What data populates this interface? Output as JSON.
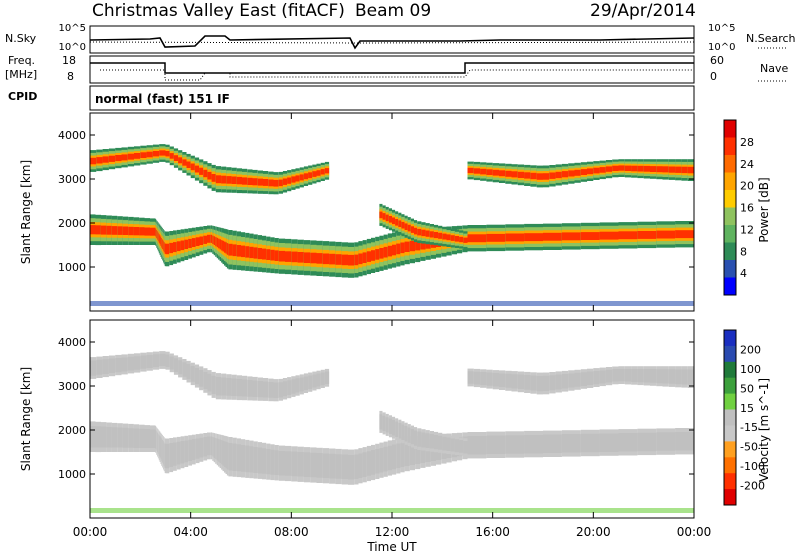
{
  "header": {
    "title": "Christmas Valley East (fitACF)",
    "beam": "Beam 09",
    "date": "29/Apr/2014"
  },
  "panels": {
    "nsky_label": "N.Sky",
    "nsearch_label": "N.Search",
    "freq_label_1": "Freq.",
    "freq_label_2": "[MHz]",
    "nave_label": "Nave",
    "cpid_label": "CPID",
    "cpid_text": "normal (fast) 151 IF",
    "noise_ticks_left": [
      "10^5",
      "10^0"
    ],
    "noise_ticks_right": [
      "10^5",
      "10^0"
    ],
    "freq_ticks": [
      "18",
      "8"
    ],
    "nave_ticks": [
      "60",
      "0"
    ]
  },
  "colors": {
    "power": [
      "#0000ff",
      "#2a50b0",
      "#2e8b57",
      "#5fb35f",
      "#8fc35f",
      "#ffcc00",
      "#ffa500",
      "#ff6a00",
      "#ff3000",
      "#e00000"
    ],
    "velocity": [
      "#1a2ec0",
      "#2a4ab0",
      "#1f7a3a",
      "#3ca03c",
      "#70d040",
      "#c0c0c0",
      "#c8c8c8",
      "#ffa020",
      "#ff7000",
      "#ff3000",
      "#e00000"
    ]
  },
  "chart_data": [
    {
      "type": "heatmap",
      "panel": "power",
      "ylabel": "Slant Range [km]",
      "xlabel": "Time UT",
      "xticks": [
        "00:00",
        "04:00",
        "08:00",
        "12:00",
        "16:00",
        "20:00",
        "00:00"
      ],
      "yticks": [
        "1000",
        "2000",
        "3000",
        "4000"
      ],
      "ylim": [
        0,
        4500
      ],
      "colorbar_label": "Power [dB]",
      "colorbar_ticks": [
        "4",
        "8",
        "12",
        "16",
        "20",
        "24",
        "28"
      ],
      "series": [
        {
          "segments": [
            [
              0.0,
              1850,
              350
            ],
            [
              2.6,
              1800,
              300
            ],
            [
              3.0,
              1400,
              400
            ],
            [
              4.8,
              1650,
              300
            ],
            [
              5.5,
              1400,
              450
            ],
            [
              7.5,
              1250,
              400
            ],
            [
              10.5,
              1150,
              400
            ],
            [
              12.5,
              1450,
              400
            ],
            [
              15.0,
              1650,
              300
            ],
            [
              24.0,
              1750,
              300
            ]
          ]
        },
        {
          "segments": [
            [
              0.0,
              3400,
              250
            ],
            [
              3.0,
              3600,
              200
            ],
            [
              5.0,
              3000,
              300
            ],
            [
              7.5,
              2900,
              250
            ],
            [
              9.5,
              3200,
              200
            ]
          ]
        },
        {
          "segments": [
            [
              11.5,
              2200,
              250
            ],
            [
              13.0,
              1800,
              250
            ],
            [
              15.0,
              1600,
              200
            ]
          ]
        },
        {
          "segments": [
            [
              15.0,
              3200,
              200
            ],
            [
              18.0,
              3050,
              250
            ],
            [
              21.0,
              3250,
              200
            ],
            [
              24.0,
              3200,
              250
            ]
          ]
        }
      ]
    },
    {
      "type": "heatmap",
      "panel": "velocity",
      "ylabel": "Slant Range [km]",
      "xlabel": "Time UT",
      "xticks": [
        "00:00",
        "04:00",
        "08:00",
        "12:00",
        "16:00",
        "20:00",
        "00:00"
      ],
      "yticks": [
        "1000",
        "2000",
        "3000",
        "4000"
      ],
      "ylim": [
        0,
        4500
      ],
      "colorbar_label": "Velocity [m s^-1]",
      "colorbar_ticks": [
        "200",
        "100",
        "50",
        "15",
        "-15",
        "-50",
        "-100",
        "-200"
      ],
      "series": [
        {
          "segments": [
            [
              0.0,
              1850,
              350
            ],
            [
              2.6,
              1800,
              300
            ],
            [
              3.0,
              1400,
              400
            ],
            [
              4.8,
              1650,
              300
            ],
            [
              5.5,
              1400,
              450
            ],
            [
              7.5,
              1250,
              400
            ],
            [
              10.5,
              1150,
              400
            ],
            [
              12.5,
              1450,
              400
            ],
            [
              15.0,
              1650,
              300
            ],
            [
              24.0,
              1750,
              300
            ]
          ]
        },
        {
          "segments": [
            [
              0.0,
              3400,
              250
            ],
            [
              3.0,
              3600,
              200
            ],
            [
              5.0,
              3000,
              300
            ],
            [
              7.5,
              2900,
              250
            ],
            [
              9.5,
              3200,
              200
            ]
          ]
        },
        {
          "segments": [
            [
              11.5,
              2200,
              250
            ],
            [
              13.0,
              1800,
              250
            ],
            [
              15.0,
              1600,
              200
            ]
          ]
        },
        {
          "segments": [
            [
              15.0,
              3200,
              200
            ],
            [
              18.0,
              3050,
              250
            ],
            [
              21.0,
              3250,
              200
            ],
            [
              24.0,
              3200,
              250
            ]
          ]
        }
      ]
    }
  ]
}
